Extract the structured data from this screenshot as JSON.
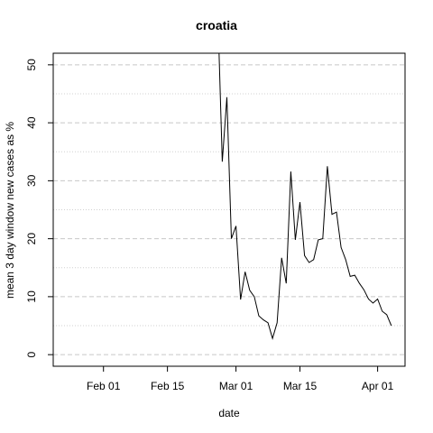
{
  "chart_data": {
    "type": "line",
    "title": "croatia",
    "xlabel": "date",
    "ylabel": "mean  3  day window new cases as %",
    "xlim": [
      "2020-01-21",
      "2020-04-07"
    ],
    "ylim": [
      -2,
      52
    ],
    "x_ticks": [
      "2020-02-01",
      "2020-02-15",
      "2020-03-01",
      "2020-03-15",
      "2020-04-01"
    ],
    "x_tick_labels": [
      "Feb 01",
      "Feb 15",
      "Mar 01",
      "Mar 15",
      "Apr 01"
    ],
    "y_ticks": [
      0,
      10,
      20,
      30,
      40,
      50
    ],
    "y_tick_labels": [
      "0",
      "10",
      "20",
      "30",
      "40",
      "50"
    ],
    "grid": {
      "major": "dashed",
      "minor": "dotted",
      "minor_y": [
        5,
        15,
        25,
        35,
        45
      ]
    },
    "series": [
      {
        "x": [
          "2020-02-26",
          "2020-02-27",
          "2020-02-28",
          "2020-02-29",
          "2020-03-01",
          "2020-03-02",
          "2020-03-03",
          "2020-03-04",
          "2020-03-05",
          "2020-03-06",
          "2020-03-07",
          "2020-03-08",
          "2020-03-09",
          "2020-03-10",
          "2020-03-11",
          "2020-03-12",
          "2020-03-13",
          "2020-03-14",
          "2020-03-15",
          "2020-03-16",
          "2020-03-17",
          "2020-03-18",
          "2020-03-19",
          "2020-03-20",
          "2020-03-21",
          "2020-03-22",
          "2020-03-23",
          "2020-03-24",
          "2020-03-25",
          "2020-03-26",
          "2020-03-27",
          "2020-03-28",
          "2020-03-29",
          "2020-03-30",
          "2020-03-31",
          "2020-04-01",
          "2020-04-02",
          "2020-04-03",
          "2020-04-04"
        ],
        "y": [
          60.0,
          33.3,
          44.4,
          20.0,
          22.2,
          9.5,
          14.3,
          11.1,
          10.0,
          6.7,
          6.0,
          5.5,
          2.8,
          5.5,
          16.7,
          12.3,
          31.6,
          19.8,
          26.3,
          17.1,
          15.9,
          16.4,
          19.8,
          20.0,
          32.5,
          24.2,
          24.6,
          18.5,
          16.4,
          13.5,
          13.7,
          12.3,
          11.2,
          9.6,
          8.9,
          9.6,
          7.5,
          6.9,
          5.0
        ]
      }
    ]
  }
}
